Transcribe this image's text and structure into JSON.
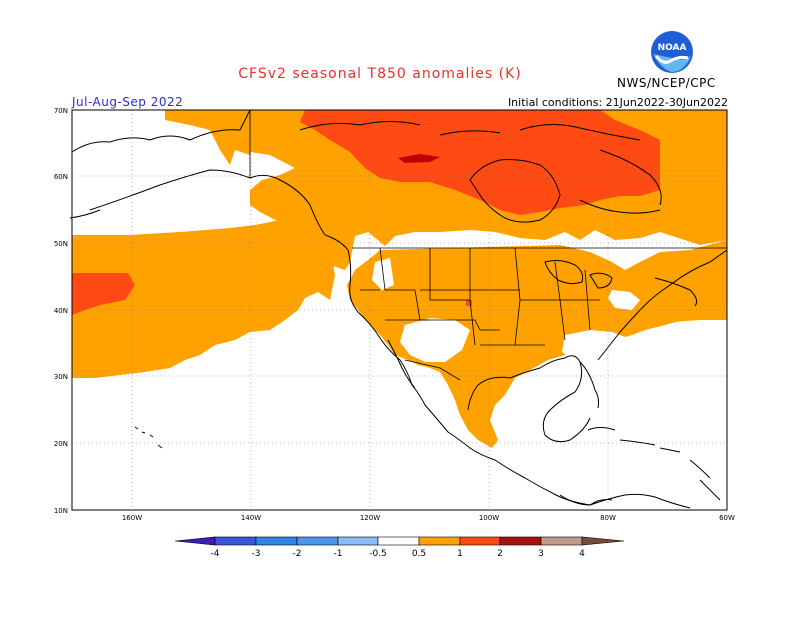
{
  "header": {
    "title": "CFSv2 seasonal T850 anomalies (K)",
    "season": "Jul-Aug-Sep 2022",
    "initial_conditions": "Initial conditions: 21Jun2022-30Jun2022",
    "agency": "NWS/NCEP/CPC",
    "logo_text": "NOAA"
  },
  "map": {
    "lat_labels": [
      "70N",
      "60N",
      "50N",
      "40N",
      "30N",
      "20N",
      "10N"
    ],
    "lon_labels": [
      "160W",
      "140W",
      "120W",
      "100W",
      "80W",
      "60W"
    ],
    "colors": {
      "ocean": "#ffffff",
      "anom_05_1": "#ffa200",
      "anom_1_2": "#ff4a14",
      "anom_2_3": "#c00000",
      "coast": "#000000"
    }
  },
  "colorbar": {
    "labels": [
      "-4",
      "-3",
      "-2",
      "-1",
      "-0.5",
      "0.5",
      "1",
      "2",
      "3",
      "4"
    ],
    "colors": [
      "#3b1fb4",
      "#3b55dd",
      "#2f84e6",
      "#64a6f3",
      "#a8cdf8",
      "#ffffff",
      "#ffa200",
      "#ff4a14",
      "#a81010",
      "#c39a8a",
      "#7a4a3a"
    ]
  }
}
